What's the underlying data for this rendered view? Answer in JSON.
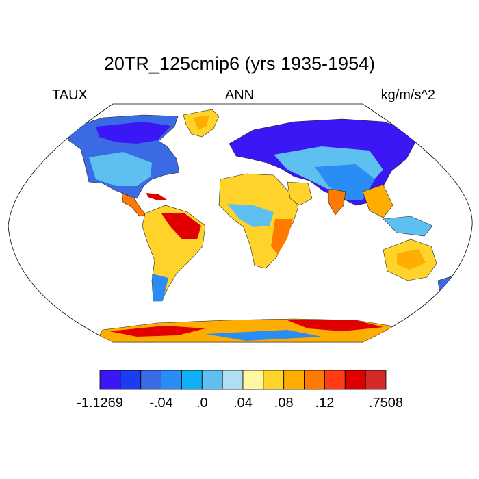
{
  "title": "20TR_125cmip6 (yrs 1935-1954)",
  "left_string": "TAUX",
  "center_string": "ANN",
  "right_string": "kg/m/s^2",
  "map": {
    "projection": "robinson",
    "field": "TAUX",
    "domain": "land"
  },
  "colorbar": {
    "colors": [
      "#3c17f5",
      "#1b3cf0",
      "#3a6ae4",
      "#2a8df5",
      "#0fb0f5",
      "#5ec0f0",
      "#b0def2",
      "#fff8a0",
      "#ffd32a",
      "#ffad00",
      "#ff7a00",
      "#ff3c14",
      "#e00000",
      "#d42a2a"
    ],
    "labels": [
      {
        "text": "-1.1269",
        "after_box": 0
      },
      {
        "text": "-.04",
        "after_box": 3
      },
      {
        "text": ".0",
        "after_box": 5
      },
      {
        "text": ".04",
        "after_box": 7
      },
      {
        "text": ".08",
        "after_box": 9
      },
      {
        "text": ".12",
        "after_box": 11
      },
      {
        "text": ".7508",
        "after_box": 14
      }
    ]
  }
}
